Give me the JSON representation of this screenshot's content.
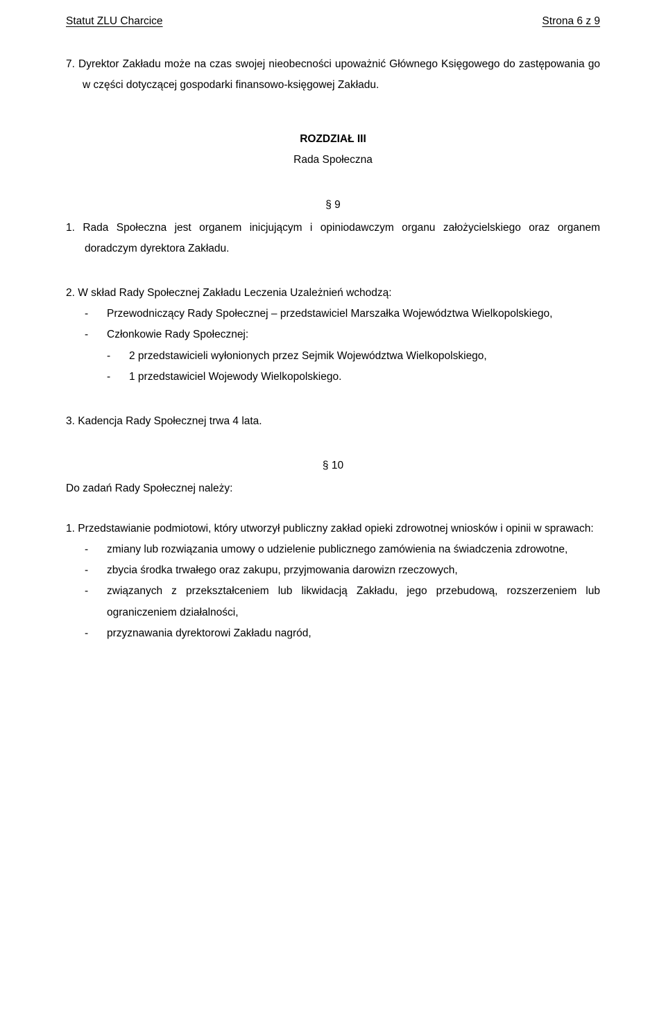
{
  "header": {
    "left": "Statut ZLU Charcice",
    "right": "Strona 6 z 9"
  },
  "para7": "7. Dyrektor Zakładu może na czas swojej nieobecności upoważnić Głównego Księgowego do zastępowania go w części dotyczącej gospodarki finansowo-księgowej Zakładu.",
  "chapter": {
    "title": "ROZDZIAŁ III",
    "subtitle": "Rada Społeczna"
  },
  "s9": {
    "num": "§ 9",
    "p1": "1. Rada Społeczna jest organem inicjującym i opiniodawczym organu założycielskiego oraz organem doradczym dyrektora Zakładu.",
    "p2_lead": "2. W skład Rady Społecznej Zakładu Leczenia Uzależnień wchodzą:",
    "p2_d1": "Przewodniczący Rady Społecznej – przedstawiciel Marszałka Województwa Wielkopolskiego,",
    "p2_d2": "Członkowie Rady Społecznej:",
    "p2_d2_s1": "2 przedstawicieli wyłonionych przez Sejmik Województwa Wielkopolskiego,",
    "p2_d2_s2": "1 przedstawiciel Wojewody Wielkopolskiego.",
    "p3": "3.   Kadencja Rady Społecznej trwa 4 lata."
  },
  "s10": {
    "num": "§ 10",
    "intro": "Do zadań Rady Społecznej należy:",
    "p1_lead": "1. Przedstawianie podmiotowi, który utworzył publiczny zakład opieki zdrowotnej wniosków i opinii w sprawach:",
    "p1_d1": "zmiany lub rozwiązania umowy o udzielenie publicznego zamówienia na świadczenia zdrowotne,",
    "p1_d2": "zbycia środka trwałego oraz zakupu, przyjmowania darowizn rzeczowych,",
    "p1_d3": "związanych z przekształceniem lub likwidacją Zakładu, jego przebudową, rozszerzeniem lub ograniczeniem działalności,",
    "p1_d4": "przyznawania dyrektorowi Zakładu nagród,"
  }
}
